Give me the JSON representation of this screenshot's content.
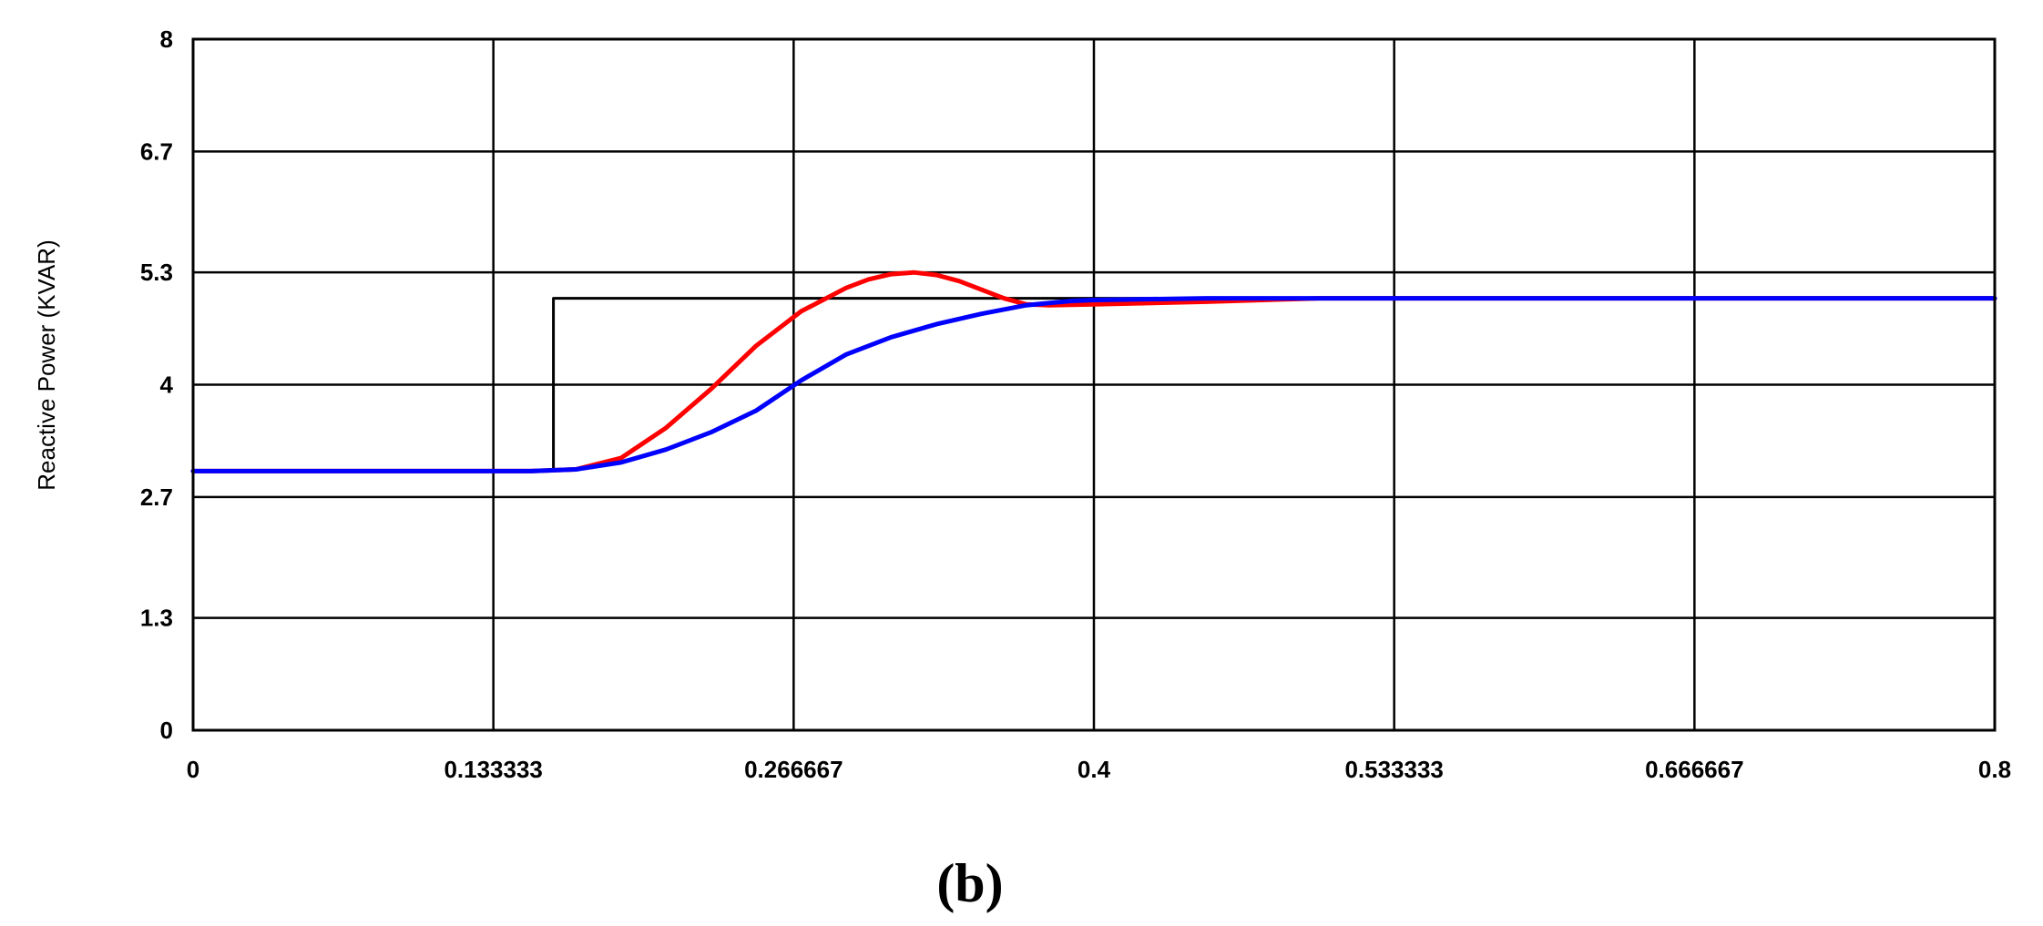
{
  "panel_label": "(b)",
  "chart_data": {
    "type": "line",
    "title": "",
    "xlabel": "",
    "ylabel": "Reactive Power (KVAR)",
    "xlim": [
      0,
      0.8
    ],
    "ylim": [
      0,
      8
    ],
    "grid": true,
    "x_ticks": [
      0,
      0.133333,
      0.266667,
      0.4,
      0.533333,
      0.666667,
      0.8
    ],
    "x_tick_labels": [
      "0",
      "0.133333",
      "0.266667",
      "0.4",
      "0.533333",
      "0.666667",
      "0.8"
    ],
    "y_ticks": [
      0,
      1.3,
      2.7,
      4,
      5.3,
      6.7,
      8
    ],
    "y_tick_labels": [
      "0",
      "1.3",
      "2.7",
      "4",
      "5.3",
      "6.7",
      "8"
    ],
    "series": [
      {
        "color": "#000000",
        "x": [
          0.16,
          0.16,
          0.8
        ],
        "y": [
          3.0,
          5.0,
          5.0
        ]
      },
      {
        "color": "#ff0000",
        "x": [
          0,
          0.05,
          0.1,
          0.15,
          0.17,
          0.19,
          0.21,
          0.23,
          0.25,
          0.27,
          0.29,
          0.3,
          0.31,
          0.32,
          0.33,
          0.34,
          0.35,
          0.36,
          0.37,
          0.38,
          0.4,
          0.45,
          0.5,
          0.55,
          0.6,
          0.65,
          0.7,
          0.75,
          0.8
        ],
        "y": [
          3.0,
          3.0,
          3.0,
          3.0,
          3.02,
          3.15,
          3.5,
          3.95,
          4.45,
          4.85,
          5.12,
          5.22,
          5.28,
          5.3,
          5.27,
          5.2,
          5.1,
          5.0,
          4.93,
          4.92,
          4.93,
          4.96,
          5.0,
          5.0,
          5.0,
          5.0,
          5.0,
          5.0,
          5.0
        ]
      },
      {
        "color": "#0000ff",
        "x": [
          0,
          0.05,
          0.1,
          0.15,
          0.17,
          0.19,
          0.21,
          0.23,
          0.25,
          0.27,
          0.29,
          0.31,
          0.33,
          0.35,
          0.37,
          0.39,
          0.4,
          0.45,
          0.5,
          0.55,
          0.6,
          0.65,
          0.7,
          0.75,
          0.8
        ],
        "y": [
          3.0,
          3.0,
          3.0,
          3.0,
          3.02,
          3.1,
          3.25,
          3.45,
          3.7,
          4.05,
          4.35,
          4.55,
          4.7,
          4.82,
          4.92,
          4.97,
          4.98,
          5.0,
          5.0,
          5.0,
          5.0,
          5.0,
          5.0,
          5.0,
          5.0
        ]
      }
    ]
  }
}
